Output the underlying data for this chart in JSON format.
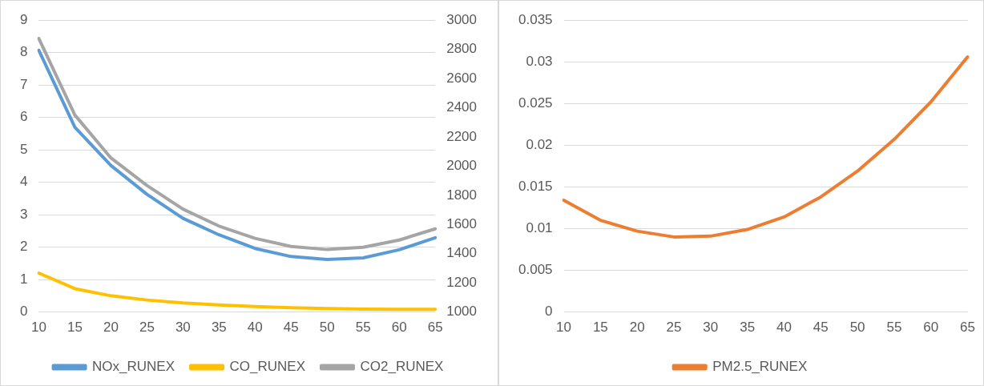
{
  "chart_data": [
    {
      "type": "line",
      "categories": [
        "10",
        "15",
        "20",
        "25",
        "30",
        "35",
        "40",
        "45",
        "50",
        "55",
        "60",
        "65"
      ],
      "series": [
        {
          "name": "NOx_RUNEX",
          "color": "#5b9bd5",
          "values": [
            8.07,
            5.7,
            4.52,
            3.63,
            2.89,
            2.38,
            1.96,
            1.71,
            1.62,
            1.67,
            1.92,
            2.29
          ]
        },
        {
          "name": "CO_RUNEX",
          "color": "#ffc000",
          "values": [
            1.2,
            0.72,
            0.5,
            0.37,
            0.28,
            0.22,
            0.17,
            0.13,
            0.11,
            0.09,
            0.08,
            0.08
          ]
        },
        {
          "name": "CO2_RUNEX",
          "color": "#a5a5a5",
          "axis": "y2",
          "values": [
            2874,
            2350,
            2056,
            1867,
            1705,
            1589,
            1505,
            1449,
            1428,
            1444,
            1493,
            1570
          ]
        }
      ],
      "ylim": [
        0,
        9
      ],
      "yticks": [
        0,
        1,
        2,
        3,
        4,
        5,
        6,
        7,
        8,
        9
      ],
      "y2lim": [
        1000,
        3000
      ],
      "y2ticks": [
        1000,
        1200,
        1400,
        1600,
        1800,
        2000,
        2200,
        2400,
        2600,
        2800,
        3000
      ],
      "grid": "y",
      "legend": "bottom",
      "marker": "none",
      "line_style": "solid"
    },
    {
      "type": "line",
      "categories": [
        "10",
        "15",
        "20",
        "25",
        "30",
        "35",
        "40",
        "45",
        "50",
        "55",
        "60",
        "65"
      ],
      "series": [
        {
          "name": "PM2.5_RUNEX",
          "color": "#ed7d31",
          "values": [
            0.0134,
            0.011,
            0.0097,
            0.009,
            0.0091,
            0.0099,
            0.0114,
            0.0138,
            0.0169,
            0.0207,
            0.0252,
            0.0306
          ]
        }
      ],
      "ylim": [
        0,
        0.035
      ],
      "yticks": [
        0,
        0.005,
        0.01,
        0.015,
        0.02,
        0.025,
        0.03,
        0.035
      ],
      "grid": "y",
      "legend": "bottom",
      "marker": "none",
      "line_style": "solid"
    }
  ]
}
